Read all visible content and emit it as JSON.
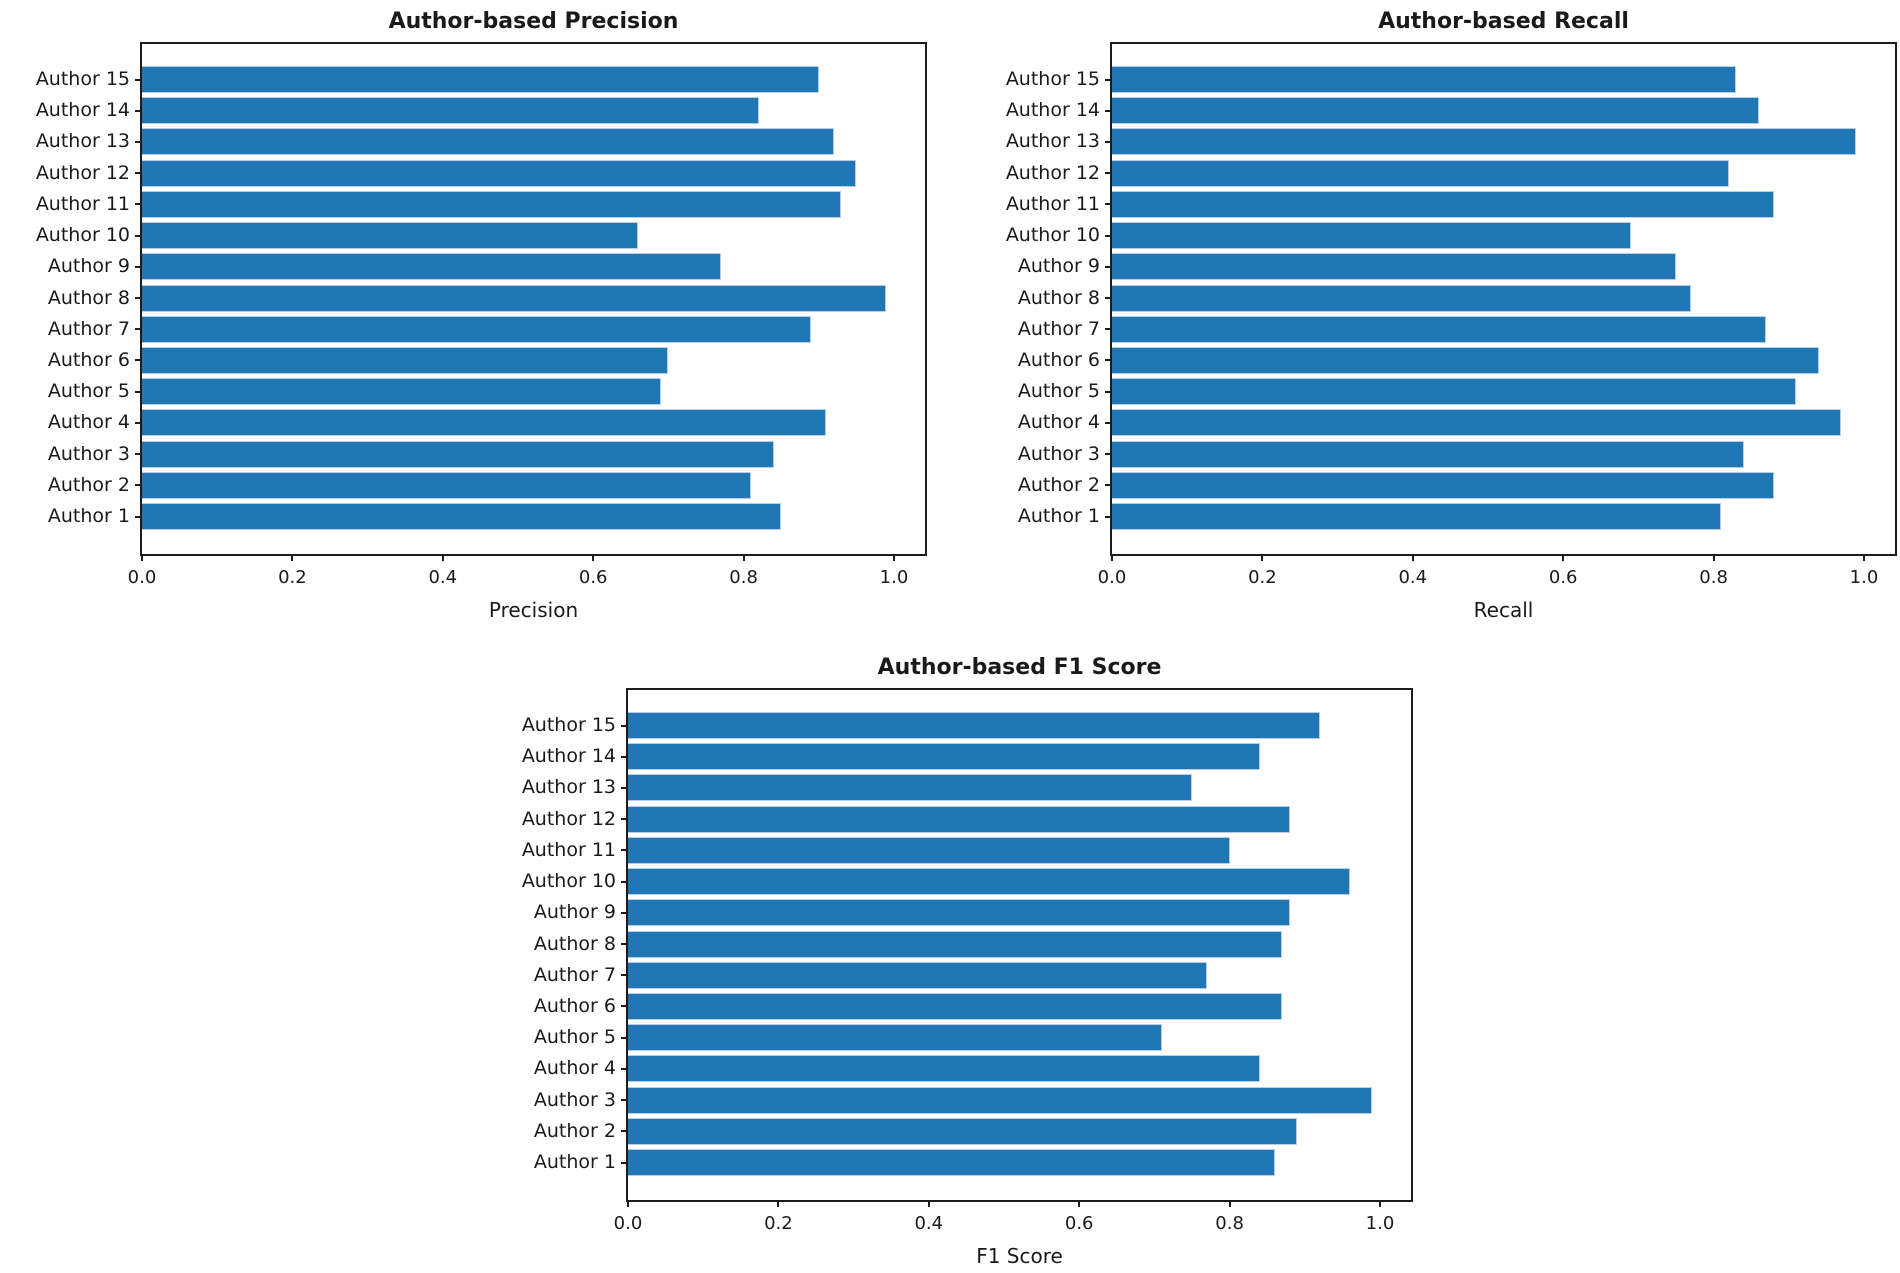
{
  "figure": {
    "background": "#ffffff",
    "bar_color": "#1f77b4",
    "bar_edge_color": "#b8cde8",
    "text_color": "#1a1a1a",
    "spine_color": "#1c1c1c"
  },
  "chart_data": [
    {
      "id": "precision",
      "type": "bar",
      "orientation": "horizontal",
      "title": "Author-based Precision",
      "xlabel": "Precision",
      "ylabel": "",
      "xlim": [
        0.0,
        1.04
      ],
      "grid": false,
      "legend": null,
      "categories": [
        "Author 1",
        "Author 2",
        "Author 3",
        "Author 4",
        "Author 5",
        "Author 6",
        "Author 7",
        "Author 8",
        "Author 9",
        "Author 10",
        "Author 11",
        "Author 12",
        "Author 13",
        "Author 14",
        "Author 15"
      ],
      "values": [
        0.85,
        0.81,
        0.84,
        0.91,
        0.69,
        0.7,
        0.89,
        0.99,
        0.77,
        0.66,
        0.93,
        0.95,
        0.92,
        0.82,
        0.9
      ],
      "category_order_top_to_bottom": "Author 15 first",
      "xticks": [
        0.0,
        0.2,
        0.4,
        0.6,
        0.8,
        1.0
      ],
      "xtick_labels": [
        "0.0",
        "0.2",
        "0.4",
        "0.6",
        "0.8",
        "1.0"
      ]
    },
    {
      "id": "recall",
      "type": "bar",
      "orientation": "horizontal",
      "title": "Author-based Recall",
      "xlabel": "Recall",
      "ylabel": "",
      "xlim": [
        0.0,
        1.04
      ],
      "grid": false,
      "legend": null,
      "categories": [
        "Author 1",
        "Author 2",
        "Author 3",
        "Author 4",
        "Author 5",
        "Author 6",
        "Author 7",
        "Author 8",
        "Author 9",
        "Author 10",
        "Author 11",
        "Author 12",
        "Author 13",
        "Author 14",
        "Author 15"
      ],
      "values": [
        0.81,
        0.88,
        0.84,
        0.97,
        0.91,
        0.94,
        0.87,
        0.77,
        0.75,
        0.69,
        0.88,
        0.82,
        0.99,
        0.86,
        0.83
      ],
      "category_order_top_to_bottom": "Author 15 first",
      "xticks": [
        0.0,
        0.2,
        0.4,
        0.6,
        0.8,
        1.0
      ],
      "xtick_labels": [
        "0.0",
        "0.2",
        "0.4",
        "0.6",
        "0.8",
        "1.0"
      ]
    },
    {
      "id": "f1",
      "type": "bar",
      "orientation": "horizontal",
      "title": "Author-based F1 Score",
      "xlabel": "F1 Score",
      "ylabel": "",
      "xlim": [
        0.0,
        1.04
      ],
      "grid": false,
      "legend": null,
      "categories": [
        "Author 1",
        "Author 2",
        "Author 3",
        "Author 4",
        "Author 5",
        "Author 6",
        "Author 7",
        "Author 8",
        "Author 9",
        "Author 10",
        "Author 11",
        "Author 12",
        "Author 13",
        "Author 14",
        "Author 15"
      ],
      "values": [
        0.86,
        0.89,
        0.99,
        0.84,
        0.71,
        0.87,
        0.77,
        0.87,
        0.88,
        0.96,
        0.8,
        0.88,
        0.75,
        0.84,
        0.92
      ],
      "category_order_top_to_bottom": "Author 15 first",
      "xticks": [
        0.0,
        0.2,
        0.4,
        0.6,
        0.8,
        1.0
      ],
      "xtick_labels": [
        "0.0",
        "0.2",
        "0.4",
        "0.6",
        "0.8",
        "1.0"
      ]
    }
  ]
}
